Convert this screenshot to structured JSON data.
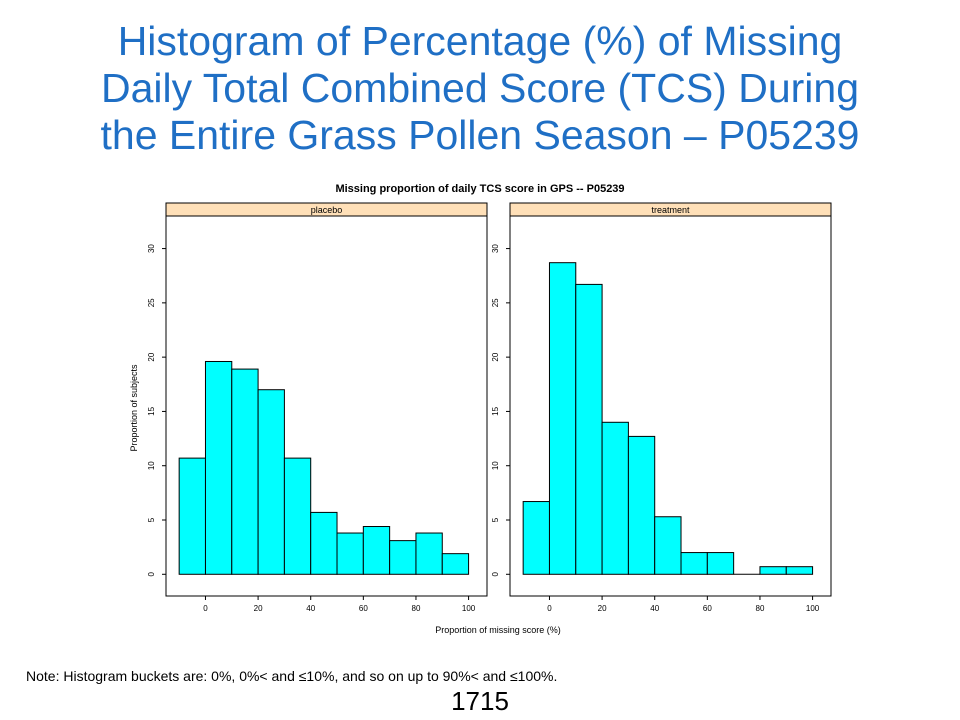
{
  "slide": {
    "title_lines": [
      "Histogram of Percentage (%) of Missing",
      "Daily Total Combined Score (TCS) During",
      "the Entire Grass Pollen Season – P05239"
    ],
    "note": "Note: Histogram buckets are: 0%, 0%< and ≤10%, and so on up to 90%< and ≤100%.",
    "page_number": "1715"
  },
  "colors": {
    "title": "#1f6fc5",
    "bar_fill": "#00ffff",
    "strip_fill": "#ffe0b8"
  },
  "chart_data": {
    "type": "bar",
    "title": "Missing proportion of daily TCS score in GPS -- P05239",
    "xlabel": "Proportion of missing score (%)",
    "ylabel": "Proportion of subjects",
    "xlim": [
      -15,
      107
    ],
    "ylim": [
      -2,
      33
    ],
    "x_ticks": [
      0,
      20,
      40,
      60,
      80,
      100
    ],
    "y_ticks": [
      0,
      5,
      10,
      15,
      20,
      25,
      30
    ],
    "bins": [
      [
        -10,
        0
      ],
      [
        0,
        10
      ],
      [
        10,
        20
      ],
      [
        20,
        30
      ],
      [
        30,
        40
      ],
      [
        40,
        50
      ],
      [
        50,
        60
      ],
      [
        60,
        70
      ],
      [
        70,
        80
      ],
      [
        80,
        90
      ],
      [
        90,
        100
      ]
    ],
    "panels": [
      {
        "name": "placebo",
        "values": [
          10.7,
          19.6,
          18.9,
          17.0,
          10.7,
          5.7,
          3.8,
          4.4,
          3.1,
          3.8,
          1.9
        ]
      },
      {
        "name": "treatment",
        "values": [
          6.7,
          28.7,
          26.7,
          14.0,
          12.7,
          5.3,
          2.0,
          2.0,
          0.0,
          0.7,
          0.7
        ]
      }
    ]
  }
}
